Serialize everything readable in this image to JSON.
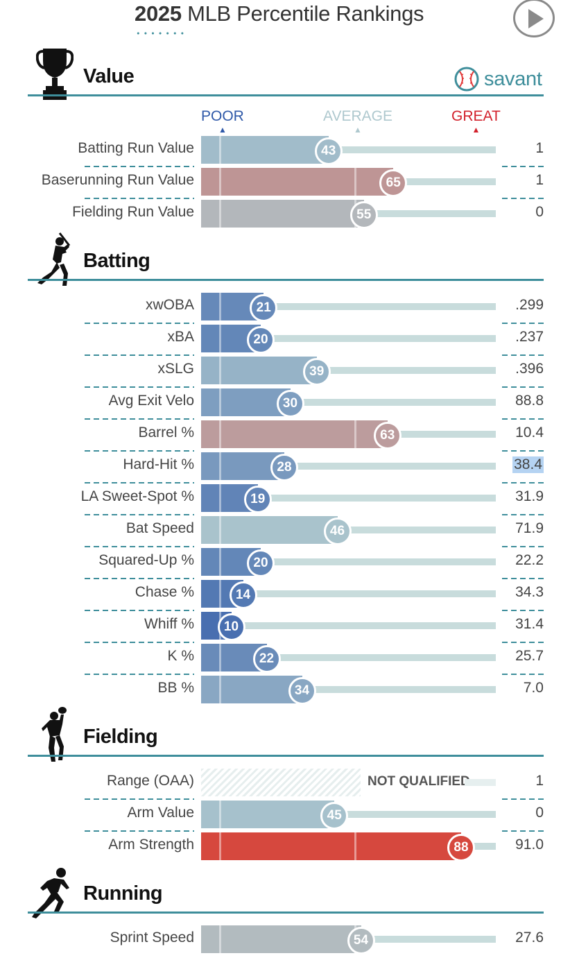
{
  "header": {
    "year": "2025",
    "title": "MLB Percentile Rankings"
  },
  "savant": {
    "brand": "savant"
  },
  "legend": {
    "poor": "POOR",
    "average": "AVERAGE",
    "great": "GREAT"
  },
  "colors": {
    "accent": "#3e8e9b",
    "poor": "#2e58a8",
    "average": "#aec8ce",
    "great": "#d2202b"
  },
  "sections": [
    {
      "title": "Value",
      "icon": "trophy-icon",
      "rows": [
        {
          "label": "Batting Run Value",
          "percentile": 43,
          "value": "1"
        },
        {
          "label": "Baserunning Run Value",
          "percentile": 65,
          "value": "1"
        },
        {
          "label": "Fielding Run Value",
          "percentile": 55,
          "value": "0"
        }
      ]
    },
    {
      "title": "Batting",
      "icon": "batter-icon",
      "rows": [
        {
          "label": "xwOBA",
          "percentile": 21,
          "value": ".299"
        },
        {
          "label": "xBA",
          "percentile": 20,
          "value": ".237"
        },
        {
          "label": "xSLG",
          "percentile": 39,
          "value": ".396"
        },
        {
          "label": "Avg Exit Velo",
          "percentile": 30,
          "value": "88.8"
        },
        {
          "label": "Barrel %",
          "percentile": 63,
          "value": "10.4"
        },
        {
          "label": "Hard-Hit %",
          "percentile": 28,
          "value": "38.4",
          "selected": true
        },
        {
          "label": "LA Sweet-Spot %",
          "percentile": 19,
          "value": "31.9"
        },
        {
          "label": "Bat Speed",
          "percentile": 46,
          "value": "71.9"
        },
        {
          "label": "Squared-Up %",
          "percentile": 20,
          "value": "22.2"
        },
        {
          "label": "Chase %",
          "percentile": 14,
          "value": "34.3"
        },
        {
          "label": "Whiff %",
          "percentile": 10,
          "value": "31.4"
        },
        {
          "label": "K %",
          "percentile": 22,
          "value": "25.7"
        },
        {
          "label": "BB %",
          "percentile": 34,
          "value": "7.0"
        }
      ]
    },
    {
      "title": "Fielding",
      "icon": "fielder-icon",
      "rows": [
        {
          "label": "Range (OAA)",
          "percentile": null,
          "value": "1",
          "not_qualified": "NOT QUALIFIED"
        },
        {
          "label": "Arm Value",
          "percentile": 45,
          "value": "0"
        },
        {
          "label": "Arm Strength",
          "percentile": 88,
          "value": "91.0"
        }
      ]
    },
    {
      "title": "Running",
      "icon": "runner-icon",
      "rows": [
        {
          "label": "Sprint Speed",
          "percentile": 54,
          "value": "27.6"
        }
      ]
    }
  ]
}
